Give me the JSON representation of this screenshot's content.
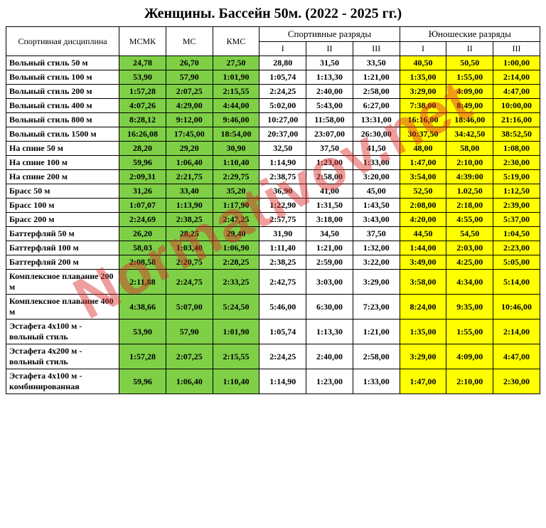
{
  "title": "Женщины. Бассейн 50м. (2022 - 2025 гг.)",
  "watermark": "Normativov.net",
  "colors": {
    "green": "#7fd047",
    "yellow": "#ffff00",
    "white": "#ffffff"
  },
  "header": {
    "discipline": "Спортивная дисциплина",
    "msmk": "МСМК",
    "ms": "МС",
    "kms": "КМС",
    "sport_group": "Спортивные разряды",
    "youth_group": "Юношеские разряды",
    "r1": "I",
    "r2": "II",
    "r3": "III"
  },
  "rows": [
    {
      "label": "Вольный стиль 50 м",
      "v": [
        "24,78",
        "26,70",
        "27,50",
        "28,80",
        "31,50",
        "33,50",
        "40,50",
        "50,50",
        "1:00,00"
      ]
    },
    {
      "label": "Вольный стиль 100 м",
      "v": [
        "53,90",
        "57,90",
        "1:01,90",
        "1:05,74",
        "1:13,30",
        "1:21,00",
        "1:35,00",
        "1:55,00",
        "2:14,00"
      ]
    },
    {
      "label": "Вольный стиль 200 м",
      "v": [
        "1:57,28",
        "2:07,25",
        "2:15,55",
        "2:24,25",
        "2:40,00",
        "2:58,00",
        "3:29,00",
        "4:09,00",
        "4:47,00"
      ]
    },
    {
      "label": "Вольный стиль 400 м",
      "v": [
        "4:07,26",
        "4:29,00",
        "4:44,00",
        "5:02,00",
        "5:43,00",
        "6:27,00",
        "7:38,00",
        "8:49,00",
        "10:00,00"
      ]
    },
    {
      "label": "Вольный стиль 800 м",
      "v": [
        "8:28,12",
        "9:12,00",
        "9:46,00",
        "10:27,00",
        "11:58,00",
        "13:31,00",
        "16:16,00",
        "18:46,00",
        "21:16,00"
      ]
    },
    {
      "label": "Вольный стиль 1500 м",
      "v": [
        "16:26,08",
        "17:45,00",
        "18:54,00",
        "20:37,00",
        "23:07,00",
        "26:30,00",
        "30:37,50",
        "34:42,50",
        "38:52,50"
      ]
    },
    {
      "label": "На спине 50 м",
      "v": [
        "28,20",
        "29,20",
        "30,90",
        "32,50",
        "37,50",
        "41,50",
        "48,00",
        "58,00",
        "1:08,00"
      ]
    },
    {
      "label": "На спине 100 м",
      "v": [
        "59,96",
        "1:06,40",
        "1:10,40",
        "1:14,90",
        "1:23,00",
        "1:33,00",
        "1:47,00",
        "2:10,00",
        "2:30,00"
      ]
    },
    {
      "label": "На спине 200 м",
      "v": [
        "2:09,31",
        "2:21,75",
        "2:29,75",
        "2:38,75",
        "2:58,00",
        "3:20,00",
        "3:54,00",
        "4:39:00",
        "5:19,00"
      ]
    },
    {
      "label": "Брасс 50 м",
      "v": [
        "31,26",
        "33,40",
        "35,20",
        "36,90",
        "41,00",
        "45,00",
        "52,50",
        "1.02,50",
        "1:12,50"
      ]
    },
    {
      "label": "Брасс 100 м",
      "v": [
        "1:07,07",
        "1:13,90",
        "1:17,90",
        "1:22,90",
        "1:31,50",
        "1:43,50",
        "2:08,00",
        "2:18,00",
        "2:39,00"
      ]
    },
    {
      "label": "Брасс 200 м",
      "v": [
        "2:24,69",
        "2:38,25",
        "2:47,25",
        "2:57,75",
        "3:18,00",
        "3:43,00",
        "4:20,00",
        "4:55,00",
        "5:37,00"
      ]
    },
    {
      "label": "Баттерфляй 50 м",
      "v": [
        "26,20",
        "28,25",
        "29,40",
        "31,90",
        "34,50",
        "37,50",
        "44,50",
        "54,50",
        "1:04,50"
      ]
    },
    {
      "label": "Баттерфляй   100 м",
      "v": [
        "58,03",
        "1:03,40",
        "1:06,90",
        "1:11,40",
        "1:21,00",
        "1:32,00",
        "1:44,00",
        "2:03,00",
        "2:23,00"
      ]
    },
    {
      "label": "Баттерфляй  200 м",
      "v": [
        "2:08,58",
        "2:20,75",
        "2:28,25",
        "2:38,25",
        "2:59,00",
        "3:22,00",
        "3:49,00",
        "4:25,00",
        "5:05,00"
      ]
    },
    {
      "label": "Комплексное плавание 200 м",
      "v": [
        "2:11,88",
        "2:24,75",
        "2:33,25",
        "2:42,75",
        "3:03,00",
        "3:29,00",
        "3:58,00",
        "4:34,00",
        "5:14,00"
      ]
    },
    {
      "label": "Комплексное плавание 400 м",
      "v": [
        "4:38,66",
        "5:07,00",
        "5:24,50",
        "5:46,00",
        "6:30,00",
        "7:23,00",
        "8:24,00",
        "9:35,00",
        "10:46,00"
      ]
    },
    {
      "label": "Эстафета 4х100 м - вольный стиль",
      "v": [
        "53,90",
        "57,90",
        "1:01,90",
        "1:05,74",
        "1:13,30",
        "1:21,00",
        "1:35,00",
        "1:55,00",
        "2:14,00"
      ]
    },
    {
      "label": "Эстафета 4х200 м - вольный стиль",
      "v": [
        "1:57,28",
        "2:07,25",
        "2:15,55",
        "2:24,25",
        "2:40,00",
        "2:58,00",
        "3:29,00",
        "4:09,00",
        "4:47,00"
      ]
    },
    {
      "label": "Эстафета 4х100 м - комбинированная",
      "v": [
        "59,96",
        "1:06,40",
        "1:10,40",
        "1:14,90",
        "1:23,00",
        "1:33,00",
        "1:47,00",
        "2:10,00",
        "2:30,00"
      ]
    }
  ]
}
